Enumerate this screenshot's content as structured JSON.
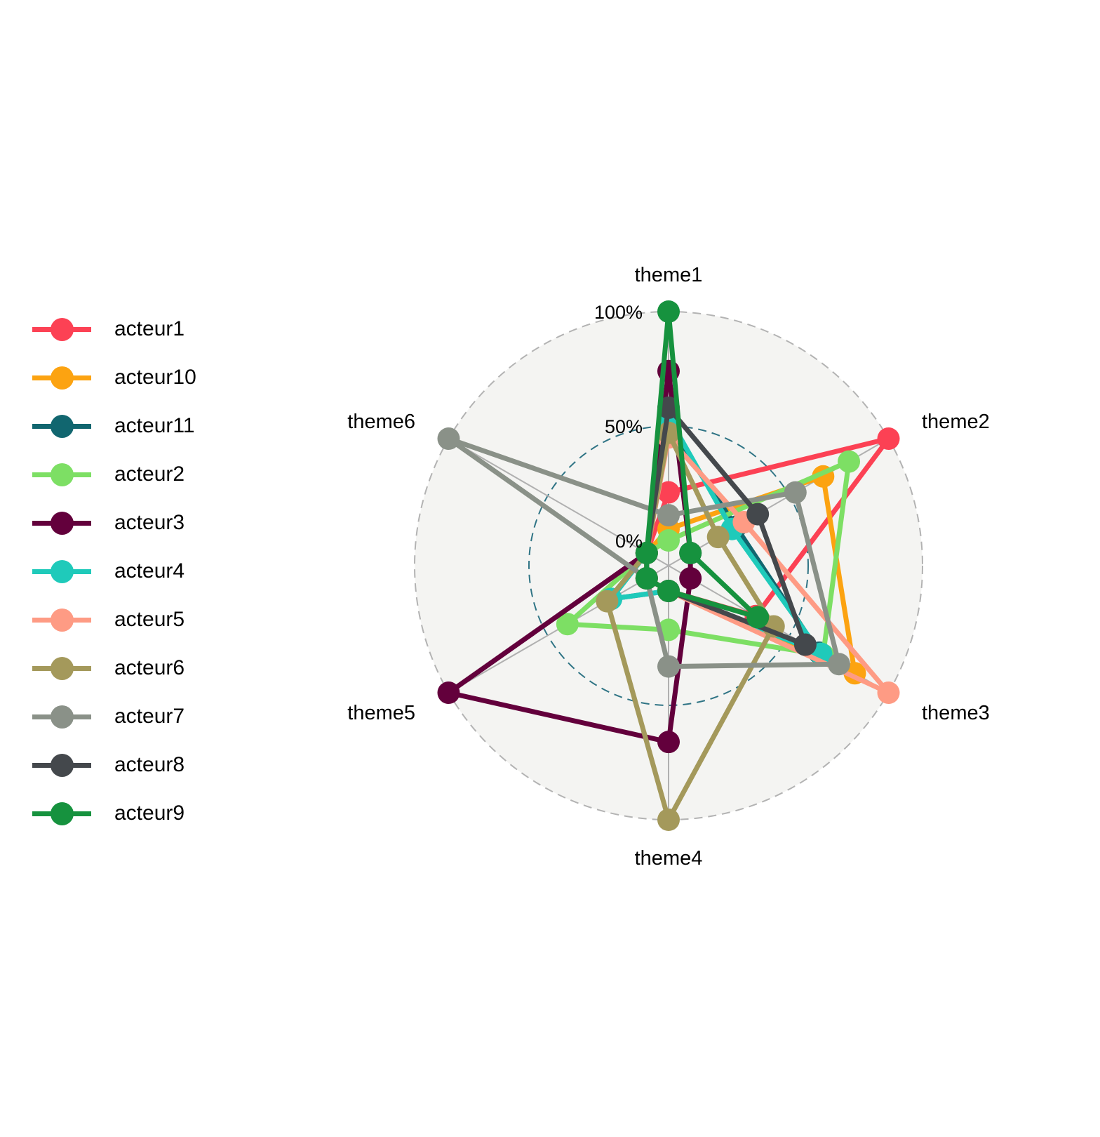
{
  "chart_data": {
    "type": "radar",
    "title": "",
    "axes": [
      "theme1",
      "theme2",
      "theme3",
      "theme4",
      "theme5",
      "theme6"
    ],
    "tick_labels": [
      "0%",
      "50%",
      "100%"
    ],
    "range": [
      0,
      100
    ],
    "grid": {
      "outer_dashed": true,
      "mid_dashed": true,
      "background": "#f4f4f2"
    },
    "legend_position": "left",
    "series": [
      {
        "name": "acteur1",
        "color": "#fc4154",
        "values": [
          21,
          100,
          33,
          0,
          0,
          0
        ]
      },
      {
        "name": "acteur10",
        "color": "#fca311",
        "values": [
          5,
          67,
          83,
          0,
          0,
          0
        ]
      },
      {
        "name": "acteur11",
        "color": "#11666f",
        "values": [
          50,
          23,
          65,
          0,
          18,
          0
        ]
      },
      {
        "name": "acteur2",
        "color": "#7ddf64",
        "values": [
          0,
          80,
          67,
          17,
          40,
          0
        ]
      },
      {
        "name": "acteur3",
        "color": "#63003c",
        "values": [
          74,
          0,
          0,
          66,
          100,
          0
        ]
      },
      {
        "name": "acteur4",
        "color": "#1fcaba",
        "values": [
          54,
          21,
          66,
          0,
          18,
          0
        ]
      },
      {
        "name": "acteur5",
        "color": "#fe9b84",
        "values": [
          45,
          27,
          100,
          0,
          0,
          0
        ]
      },
      {
        "name": "acteur6",
        "color": "#a4995b",
        "values": [
          47,
          14,
          42,
          100,
          20,
          0
        ]
      },
      {
        "name": "acteur7",
        "color": "#8a9188",
        "values": [
          11,
          53,
          75,
          33,
          0,
          100
        ]
      },
      {
        "name": "acteur8",
        "color": "#44484c",
        "values": [
          58,
          34,
          58,
          0,
          0,
          0
        ]
      },
      {
        "name": "acteur9",
        "color": "#16923e",
        "values": [
          100,
          0,
          34,
          0,
          0,
          0
        ]
      }
    ]
  },
  "legend": {
    "items": [
      {
        "label": "acteur1"
      },
      {
        "label": "acteur10"
      },
      {
        "label": "acteur11"
      },
      {
        "label": "acteur2"
      },
      {
        "label": "acteur3"
      },
      {
        "label": "acteur4"
      },
      {
        "label": "acteur5"
      },
      {
        "label": "acteur6"
      },
      {
        "label": "acteur7"
      },
      {
        "label": "acteur8"
      },
      {
        "label": "acteur9"
      }
    ]
  }
}
